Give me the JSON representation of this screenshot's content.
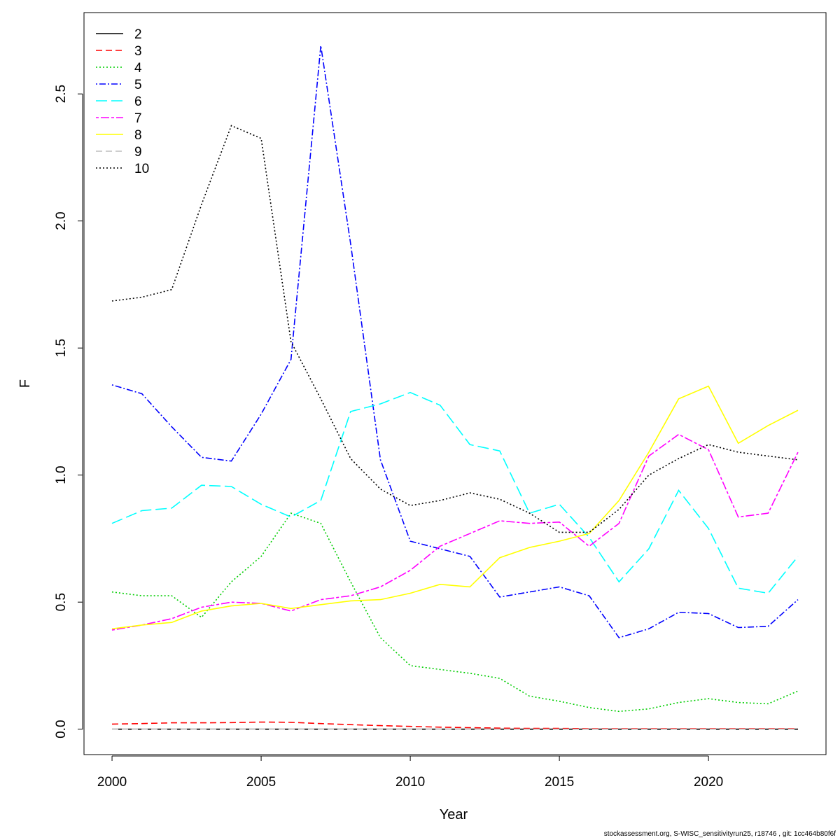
{
  "chart_data": {
    "type": "line",
    "xlabel": "Year",
    "ylabel": "F",
    "xlim": [
      1999.06,
      2023.94
    ],
    "ylim": [
      -0.1,
      2.82
    ],
    "x_ticks": [
      2000,
      2005,
      2010,
      2015,
      2020
    ],
    "y_ticks": [
      0.0,
      0.5,
      1.0,
      1.5,
      2.0,
      2.5
    ],
    "x_tick_labels": [
      "2000",
      "2005",
      "2010",
      "2015",
      "2020"
    ],
    "y_tick_labels": [
      "0.0",
      "0.5",
      "1.0",
      "1.5",
      "2.0",
      "2.5"
    ],
    "legend_position": "top-left",
    "x": [
      2000,
      2001,
      2002,
      2003,
      2004,
      2005,
      2006,
      2007,
      2008,
      2009,
      2010,
      2011,
      2012,
      2013,
      2014,
      2015,
      2016,
      2017,
      2018,
      2019,
      2020,
      2021,
      2022,
      2023
    ],
    "series": [
      {
        "name": "2",
        "color": "#000000",
        "dash": "solid",
        "values": [
          0,
          0,
          0,
          0,
          0,
          0,
          0,
          0,
          0,
          0,
          0,
          0,
          0,
          0,
          0,
          0,
          0,
          0,
          0,
          0,
          0,
          0,
          0,
          0
        ]
      },
      {
        "name": "3",
        "color": "#ff0000",
        "dash": "dashed",
        "values": [
          0.02,
          0.022,
          0.025,
          0.025,
          0.026,
          0.028,
          0.027,
          0.022,
          0.018,
          0.014,
          0.011,
          0.008,
          0.006,
          0.004,
          0.003,
          0.003,
          0.002,
          0.002,
          0.002,
          0.002,
          0.002,
          0.002,
          0.002,
          0.002
        ]
      },
      {
        "name": "4",
        "color": "#00cd00",
        "dash": "dotted",
        "values": [
          0.54,
          0.525,
          0.525,
          0.44,
          0.58,
          0.68,
          0.85,
          0.81,
          0.58,
          0.36,
          0.25,
          0.235,
          0.22,
          0.2,
          0.13,
          0.11,
          0.085,
          0.07,
          0.08,
          0.105,
          0.12,
          0.105,
          0.1,
          0.15
        ]
      },
      {
        "name": "5",
        "color": "#0000ff",
        "dash": "dotdash",
        "values": [
          1.355,
          1.32,
          1.19,
          1.07,
          1.055,
          1.24,
          1.455,
          2.69,
          1.91,
          1.06,
          0.74,
          0.71,
          0.68,
          0.52,
          0.54,
          0.56,
          0.525,
          0.36,
          0.395,
          0.46,
          0.455,
          0.4,
          0.405,
          0.51
        ]
      },
      {
        "name": "6",
        "color": "#00ffff",
        "dash": "longdash",
        "values": [
          0.81,
          0.86,
          0.87,
          0.96,
          0.955,
          0.885,
          0.835,
          0.9,
          1.25,
          1.28,
          1.325,
          1.275,
          1.12,
          1.095,
          0.85,
          0.885,
          0.755,
          0.58,
          0.71,
          0.94,
          0.79,
          0.555,
          0.535,
          0.68
        ]
      },
      {
        "name": "7",
        "color": "#ff00ff",
        "dash": "twodash",
        "values": [
          0.39,
          0.41,
          0.435,
          0.48,
          0.5,
          0.495,
          0.465,
          0.51,
          0.525,
          0.56,
          0.625,
          0.72,
          0.77,
          0.82,
          0.81,
          0.815,
          0.72,
          0.81,
          1.075,
          1.16,
          1.1,
          0.835,
          0.85,
          1.09
        ]
      },
      {
        "name": "8",
        "color": "#ffff00",
        "dash": "solid",
        "values": [
          0.395,
          0.41,
          0.42,
          0.465,
          0.485,
          0.495,
          0.475,
          0.49,
          0.505,
          0.51,
          0.535,
          0.57,
          0.56,
          0.675,
          0.715,
          0.74,
          0.77,
          0.9,
          1.09,
          1.3,
          1.35,
          1.125,
          1.195,
          1.255
        ]
      },
      {
        "name": "9",
        "color": "#bebebe",
        "dash": "dashed",
        "values": [
          0,
          0,
          0,
          0,
          0,
          0,
          0,
          0,
          0,
          0,
          0,
          0,
          0,
          0,
          0,
          0,
          0,
          0,
          0,
          0,
          0,
          0,
          0,
          0
        ]
      },
      {
        "name": "10",
        "color": "#000000",
        "dash": "dotted",
        "values": [
          1.685,
          1.7,
          1.73,
          2.065,
          2.375,
          2.325,
          1.525,
          1.3,
          1.065,
          0.945,
          0.88,
          0.9,
          0.93,
          0.905,
          0.85,
          0.775,
          0.775,
          0.865,
          1.0,
          1.065,
          1.12,
          1.09,
          1.075,
          1.06
        ]
      }
    ]
  },
  "footer": "stockassessment.org, S-WISC_sensitivityrun25, r18746 , git: 1cc464b80f6f"
}
